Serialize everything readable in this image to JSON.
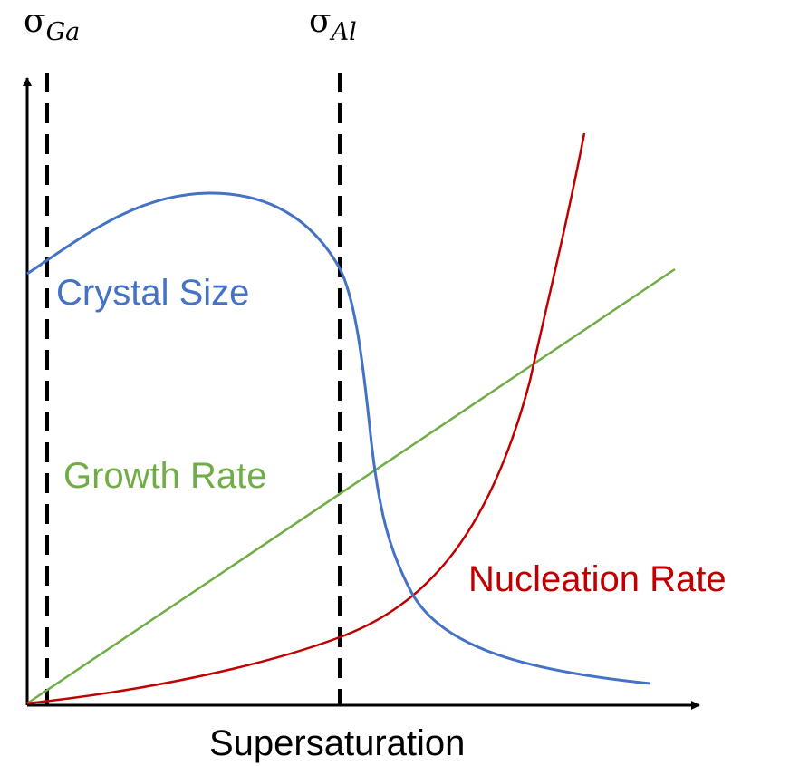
{
  "colors": {
    "crystal_size": "#4472c4",
    "growth_rate": "#70ad47",
    "nucleation_rate": "#c00000",
    "axis": "#000000"
  },
  "labels": {
    "sigma_ga": {
      "symbol": "σ",
      "subscript": "Ga"
    },
    "sigma_al": {
      "symbol": "σ",
      "subscript": "Al"
    },
    "crystal_size": "Crystal Size",
    "growth_rate": "Growth Rate",
    "nucleation_rate": "Nucleation Rate",
    "x_axis": "Supersaturation"
  }
}
